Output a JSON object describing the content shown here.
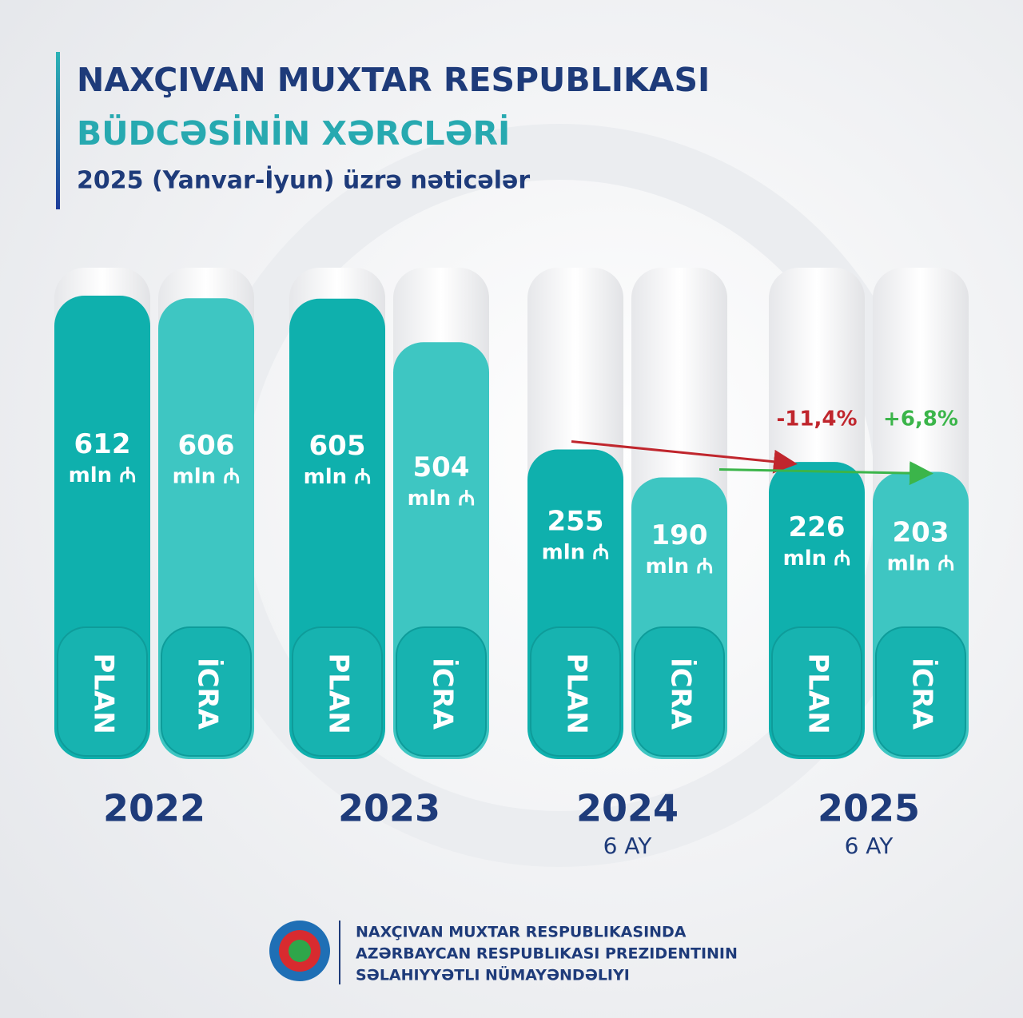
{
  "chart_data": {
    "type": "bar",
    "title_lines": [
      "NAXÇIVAN MUXTAR RESPUBLIKASI",
      "BÜDCƏSİNİN XƏRCLƏRİ"
    ],
    "subtitle": "2025 (Yanvar-İyun) üzrə nəticələr",
    "categories": [
      "2022",
      "2023",
      "2024",
      "2025"
    ],
    "period_labels": [
      null,
      null,
      "6 AY",
      "6 AY"
    ],
    "unit": "mln ₼",
    "series": [
      {
        "name": "PLAN",
        "color": "#0fb0ad",
        "values": [
          612,
          605,
          255,
          226
        ]
      },
      {
        "name": "İCRA",
        "color": "#3ec6c2",
        "values": [
          606,
          504,
          190,
          203
        ]
      }
    ],
    "annotations": [
      {
        "value": -11.4,
        "label": "-11,4%",
        "color": "#c0262d"
      },
      {
        "value": 6.8,
        "label": "+6,8%",
        "color": "#3bb54a"
      }
    ]
  },
  "footer": {
    "lines": [
      "NAXÇIVAN MUXTAR RESPUBLIKASINDA",
      "AZƏRBAYCAN RESPUBLIKASI PREZIDENTININ",
      "SƏLAHIYYƏTLI NÜMAYƏNDƏLIYI"
    ]
  }
}
